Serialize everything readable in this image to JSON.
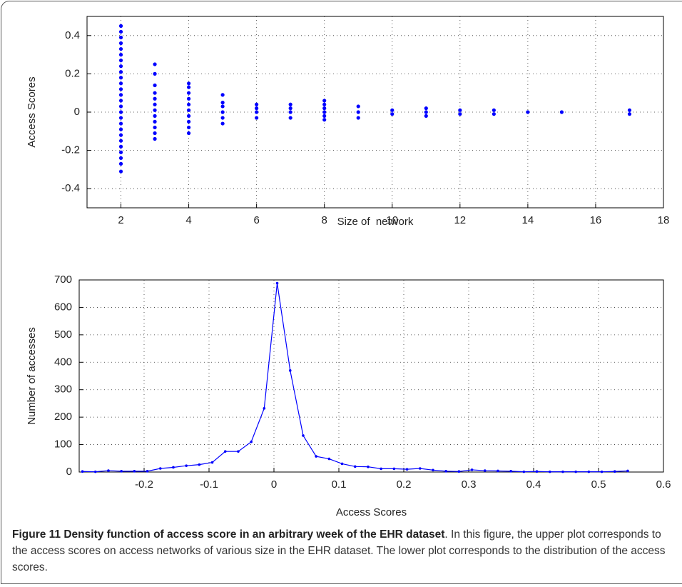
{
  "charts": [
    {
      "chart_data": {
        "type": "scatter",
        "xlabel": "Size of  network",
        "ylabel": "Access Scores",
        "x": [
          2,
          2,
          2,
          2,
          2,
          2,
          2,
          2,
          2,
          2,
          2,
          2,
          2,
          2,
          2,
          2,
          2,
          2,
          2,
          2,
          2,
          2,
          2,
          2,
          2,
          2,
          3,
          3,
          3,
          3,
          3,
          3,
          3,
          3,
          3,
          3,
          3,
          3,
          4,
          4,
          4,
          4,
          4,
          4,
          4,
          4,
          4,
          4,
          5,
          5,
          5,
          5,
          5,
          5,
          6,
          6,
          6,
          6,
          7,
          7,
          7,
          7,
          8,
          8,
          8,
          8,
          8,
          8,
          9,
          9,
          9,
          10,
          10,
          11,
          11,
          11,
          12,
          12,
          13,
          13,
          14,
          15,
          17,
          17
        ],
        "y": [
          -0.31,
          -0.27,
          -0.24,
          -0.21,
          -0.18,
          -0.15,
          -0.12,
          -0.09,
          -0.06,
          -0.03,
          0,
          0.03,
          0.06,
          0.09,
          0.12,
          0.15,
          0.18,
          0.21,
          0.24,
          0.27,
          0.3,
          0.33,
          0.36,
          0.39,
          0.42,
          0.45,
          -0.14,
          -0.11,
          -0.08,
          -0.05,
          -0.02,
          0.01,
          0.04,
          0.07,
          0.1,
          0.14,
          0.2,
          0.25,
          -0.11,
          -0.08,
          -0.05,
          -0.02,
          0.01,
          0.04,
          0.07,
          0.1,
          0.13,
          0.15,
          -0.06,
          -0.03,
          0,
          0.03,
          0.05,
          0.09,
          -0.03,
          0,
          0.02,
          0.04,
          -0.03,
          0,
          0.02,
          0.04,
          -0.04,
          -0.02,
          0,
          0.02,
          0.04,
          0.06,
          -0.03,
          0,
          0.03,
          -0.01,
          0.01,
          -0.02,
          0,
          0.02,
          -0.01,
          0.01,
          -0.01,
          0.01,
          0,
          0,
          -0.01,
          0.01
        ],
        "color": "#0000ff",
        "xlim": [
          1,
          18
        ],
        "xticks": [
          2,
          4,
          6,
          8,
          10,
          12,
          14,
          16,
          18
        ],
        "ylim": [
          -0.5,
          0.5
        ],
        "yticks": [
          -0.4,
          -0.2,
          0,
          0.2,
          0.4
        ],
        "grid": true
      }
    },
    {
      "chart_data": {
        "type": "line",
        "xlabel": "Access Scores",
        "ylabel": "Number of accesses",
        "x": [
          -0.295,
          -0.275,
          -0.255,
          -0.235,
          -0.215,
          -0.195,
          -0.175,
          -0.155,
          -0.135,
          -0.115,
          -0.095,
          -0.075,
          -0.055,
          -0.035,
          -0.015,
          0.005,
          0.025,
          0.045,
          0.065,
          0.085,
          0.105,
          0.125,
          0.145,
          0.165,
          0.185,
          0.205,
          0.225,
          0.245,
          0.265,
          0.285,
          0.305,
          0.325,
          0.345,
          0.365,
          0.385,
          0.405,
          0.425,
          0.445,
          0.465,
          0.485,
          0.505,
          0.525,
          0.545
        ],
        "values": [
          2,
          1,
          5,
          3,
          3,
          3,
          13,
          17,
          23,
          27,
          35,
          75,
          75,
          110,
          232,
          688,
          370,
          133,
          57,
          48,
          30,
          20,
          19,
          12,
          12,
          10,
          13,
          7,
          3,
          2,
          8,
          5,
          4,
          3,
          1,
          2,
          1,
          1,
          1,
          1,
          1,
          2,
          4
        ],
        "color": "#0000ff",
        "xlim": [
          -0.3,
          0.6
        ],
        "xticks": [
          -0.2,
          -0.1,
          0,
          0.1,
          0.2,
          0.3,
          0.4,
          0.5,
          0.6
        ],
        "ylim": [
          0,
          700
        ],
        "yticks": [
          0,
          100,
          200,
          300,
          400,
          500,
          600,
          700
        ],
        "grid": true
      }
    }
  ],
  "caption": {
    "title": "Figure 11 Density function of access score in an arbitrary week of the EHR dataset",
    "text": ". In this figure, the upper plot corresponds to the access scores on access networks of various size in the EHR dataset. The lower plot corresponds to the distribution of the access scores."
  }
}
